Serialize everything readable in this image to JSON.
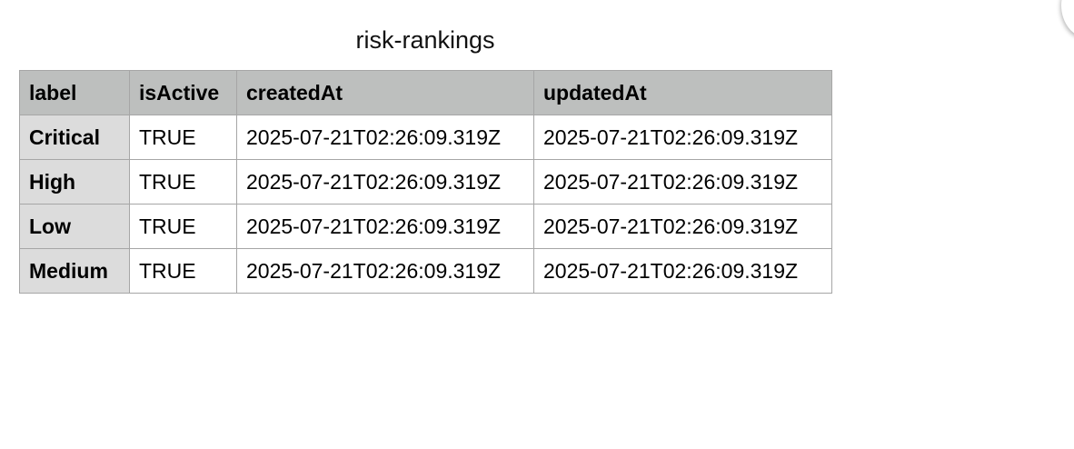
{
  "title": "risk-rankings",
  "table": {
    "columns": [
      "label",
      "isActive",
      "createdAt",
      "updatedAt"
    ],
    "rows": [
      {
        "label": "Critical",
        "isActive": "TRUE",
        "createdAt": "2025-07-21T02:26:09.319Z",
        "updatedAt": "2025-07-21T02:26:09.319Z"
      },
      {
        "label": "High",
        "isActive": "TRUE",
        "createdAt": "2025-07-21T02:26:09.319Z",
        "updatedAt": "2025-07-21T02:26:09.319Z"
      },
      {
        "label": "Low",
        "isActive": "TRUE",
        "createdAt": "2025-07-21T02:26:09.319Z",
        "updatedAt": "2025-07-21T02:26:09.319Z"
      },
      {
        "label": "Medium",
        "isActive": "TRUE",
        "createdAt": "2025-07-21T02:26:09.319Z",
        "updatedAt": "2025-07-21T02:26:09.319Z"
      }
    ]
  },
  "colors": {
    "header_bg": "#bdbfbe",
    "row_header_bg": "#dcdcdc",
    "border": "#a6a6a6"
  }
}
